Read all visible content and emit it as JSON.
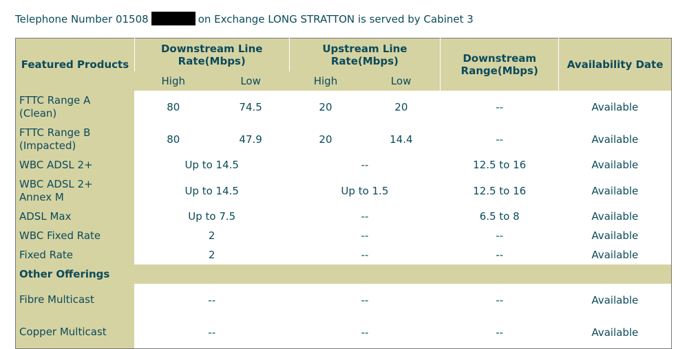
{
  "header": {
    "prefix": "Telephone Number 01508",
    "suffix": "on Exchange LONG STRATTON is served by Cabinet 3"
  },
  "table": {
    "columns": [
      "Featured Products",
      "Downstream Line Rate(Mbps)",
      "Upstream Line Rate(Mbps)",
      "Downstream Range(Mbps)",
      "Availability Date"
    ],
    "subheaders": [
      "High",
      "Low",
      "High",
      "Low"
    ],
    "rows": [
      {
        "product": "FTTC Range A (Clean)",
        "cells": [
          "80",
          "74.5",
          "20",
          "20",
          "--",
          "Available"
        ]
      },
      {
        "product": "FTTC Range B (Impacted)",
        "cells": [
          "80",
          "47.9",
          "20",
          "14.4",
          "--",
          "Available"
        ]
      },
      {
        "product": "WBC ADSL 2+",
        "cells": [
          "Up to 14.5",
          "--",
          "12.5 to 16",
          "Available"
        ]
      },
      {
        "product": "WBC ADSL 2+ Annex M",
        "cells": [
          "Up to 14.5",
          "Up to 1.5",
          "12.5 to 16",
          "Available"
        ]
      },
      {
        "product": "ADSL Max",
        "cells": [
          "Up to 7.5",
          "--",
          "6.5 to 8",
          "Available"
        ]
      },
      {
        "product": "WBC Fixed Rate",
        "cells": [
          "2",
          "--",
          "--",
          "Available"
        ]
      },
      {
        "product": "Fixed Rate",
        "cells": [
          "2",
          "--",
          "--",
          "Available"
        ]
      },
      {
        "section": "Other Offerings"
      },
      {
        "product": "Fibre Multicast",
        "cells": [
          "--",
          "--",
          "--",
          "Available"
        ]
      },
      {
        "product": "Copper Multicast",
        "cells": [
          "--",
          "--",
          "--",
          "Available"
        ]
      }
    ]
  }
}
